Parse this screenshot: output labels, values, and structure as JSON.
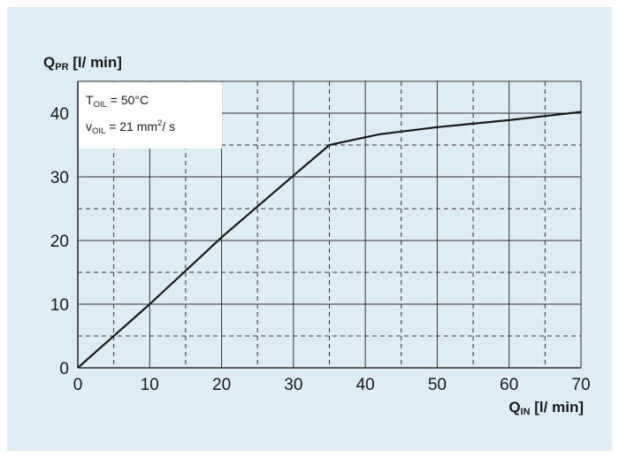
{
  "chart_data": {
    "type": "line",
    "ylabel": {
      "main": "Q",
      "sub": "PR",
      "unit": " [l/ min]"
    },
    "xlabel": {
      "main": "Q",
      "sub": "IN",
      "unit": " [l/ min]"
    },
    "xlim": [
      0,
      70
    ],
    "ylim": [
      0,
      45
    ],
    "x_ticks": [
      0,
      10,
      20,
      30,
      40,
      50,
      60,
      70
    ],
    "y_ticks": [
      0,
      10,
      20,
      30,
      40
    ],
    "grid": {
      "major_solid": true,
      "minor_dashed": true,
      "minor_step_x": 5,
      "minor_step_y": 5
    },
    "annotation": {
      "t_main": "T",
      "t_sub": "OIL",
      "t_rest": " = 50°C",
      "v_main": "v",
      "v_sub": "OIL",
      "v_rest": " = 21 mm",
      "v_sup": "2",
      "v_end": "/ s"
    },
    "series": [
      {
        "x": [
          0,
          10,
          20,
          30,
          35,
          42,
          50,
          60,
          70
        ],
        "y": [
          0,
          10,
          20.5,
          30.2,
          35,
          36.7,
          37.8,
          38.9,
          40.2
        ]
      }
    ],
    "colors": {
      "background": "#dcedf6",
      "line": "#1a1a1a",
      "grid": "#333333",
      "label_box": "#ffffff"
    }
  }
}
